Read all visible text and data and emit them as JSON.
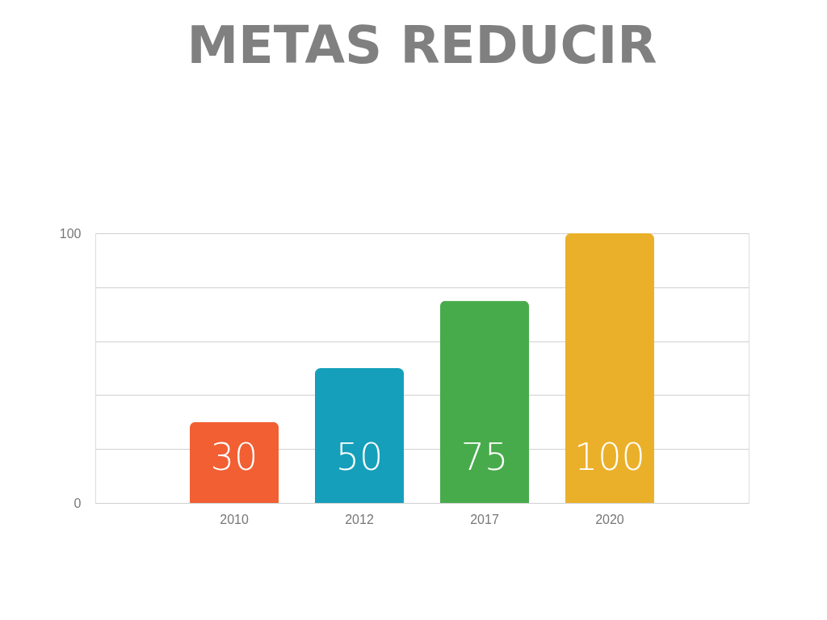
{
  "chart_data": {
    "type": "bar",
    "title": "METAS REDUCIR",
    "categories": [
      "2010",
      "2012",
      "2017",
      "2020"
    ],
    "values": [
      30,
      50,
      75,
      100
    ],
    "colors": [
      "#f15f33",
      "#159fbb",
      "#48ab4b",
      "#ebb02a"
    ],
    "ylim": [
      0,
      100
    ],
    "yticks": [
      0,
      {
        "value": 20,
        "label": null
      },
      {
        "value": 40,
        "label": null
      },
      {
        "value": 60,
        "label": null
      },
      {
        "value": 80,
        "label": null
      },
      100
    ],
    "grid": "y",
    "data_labels": true
  }
}
